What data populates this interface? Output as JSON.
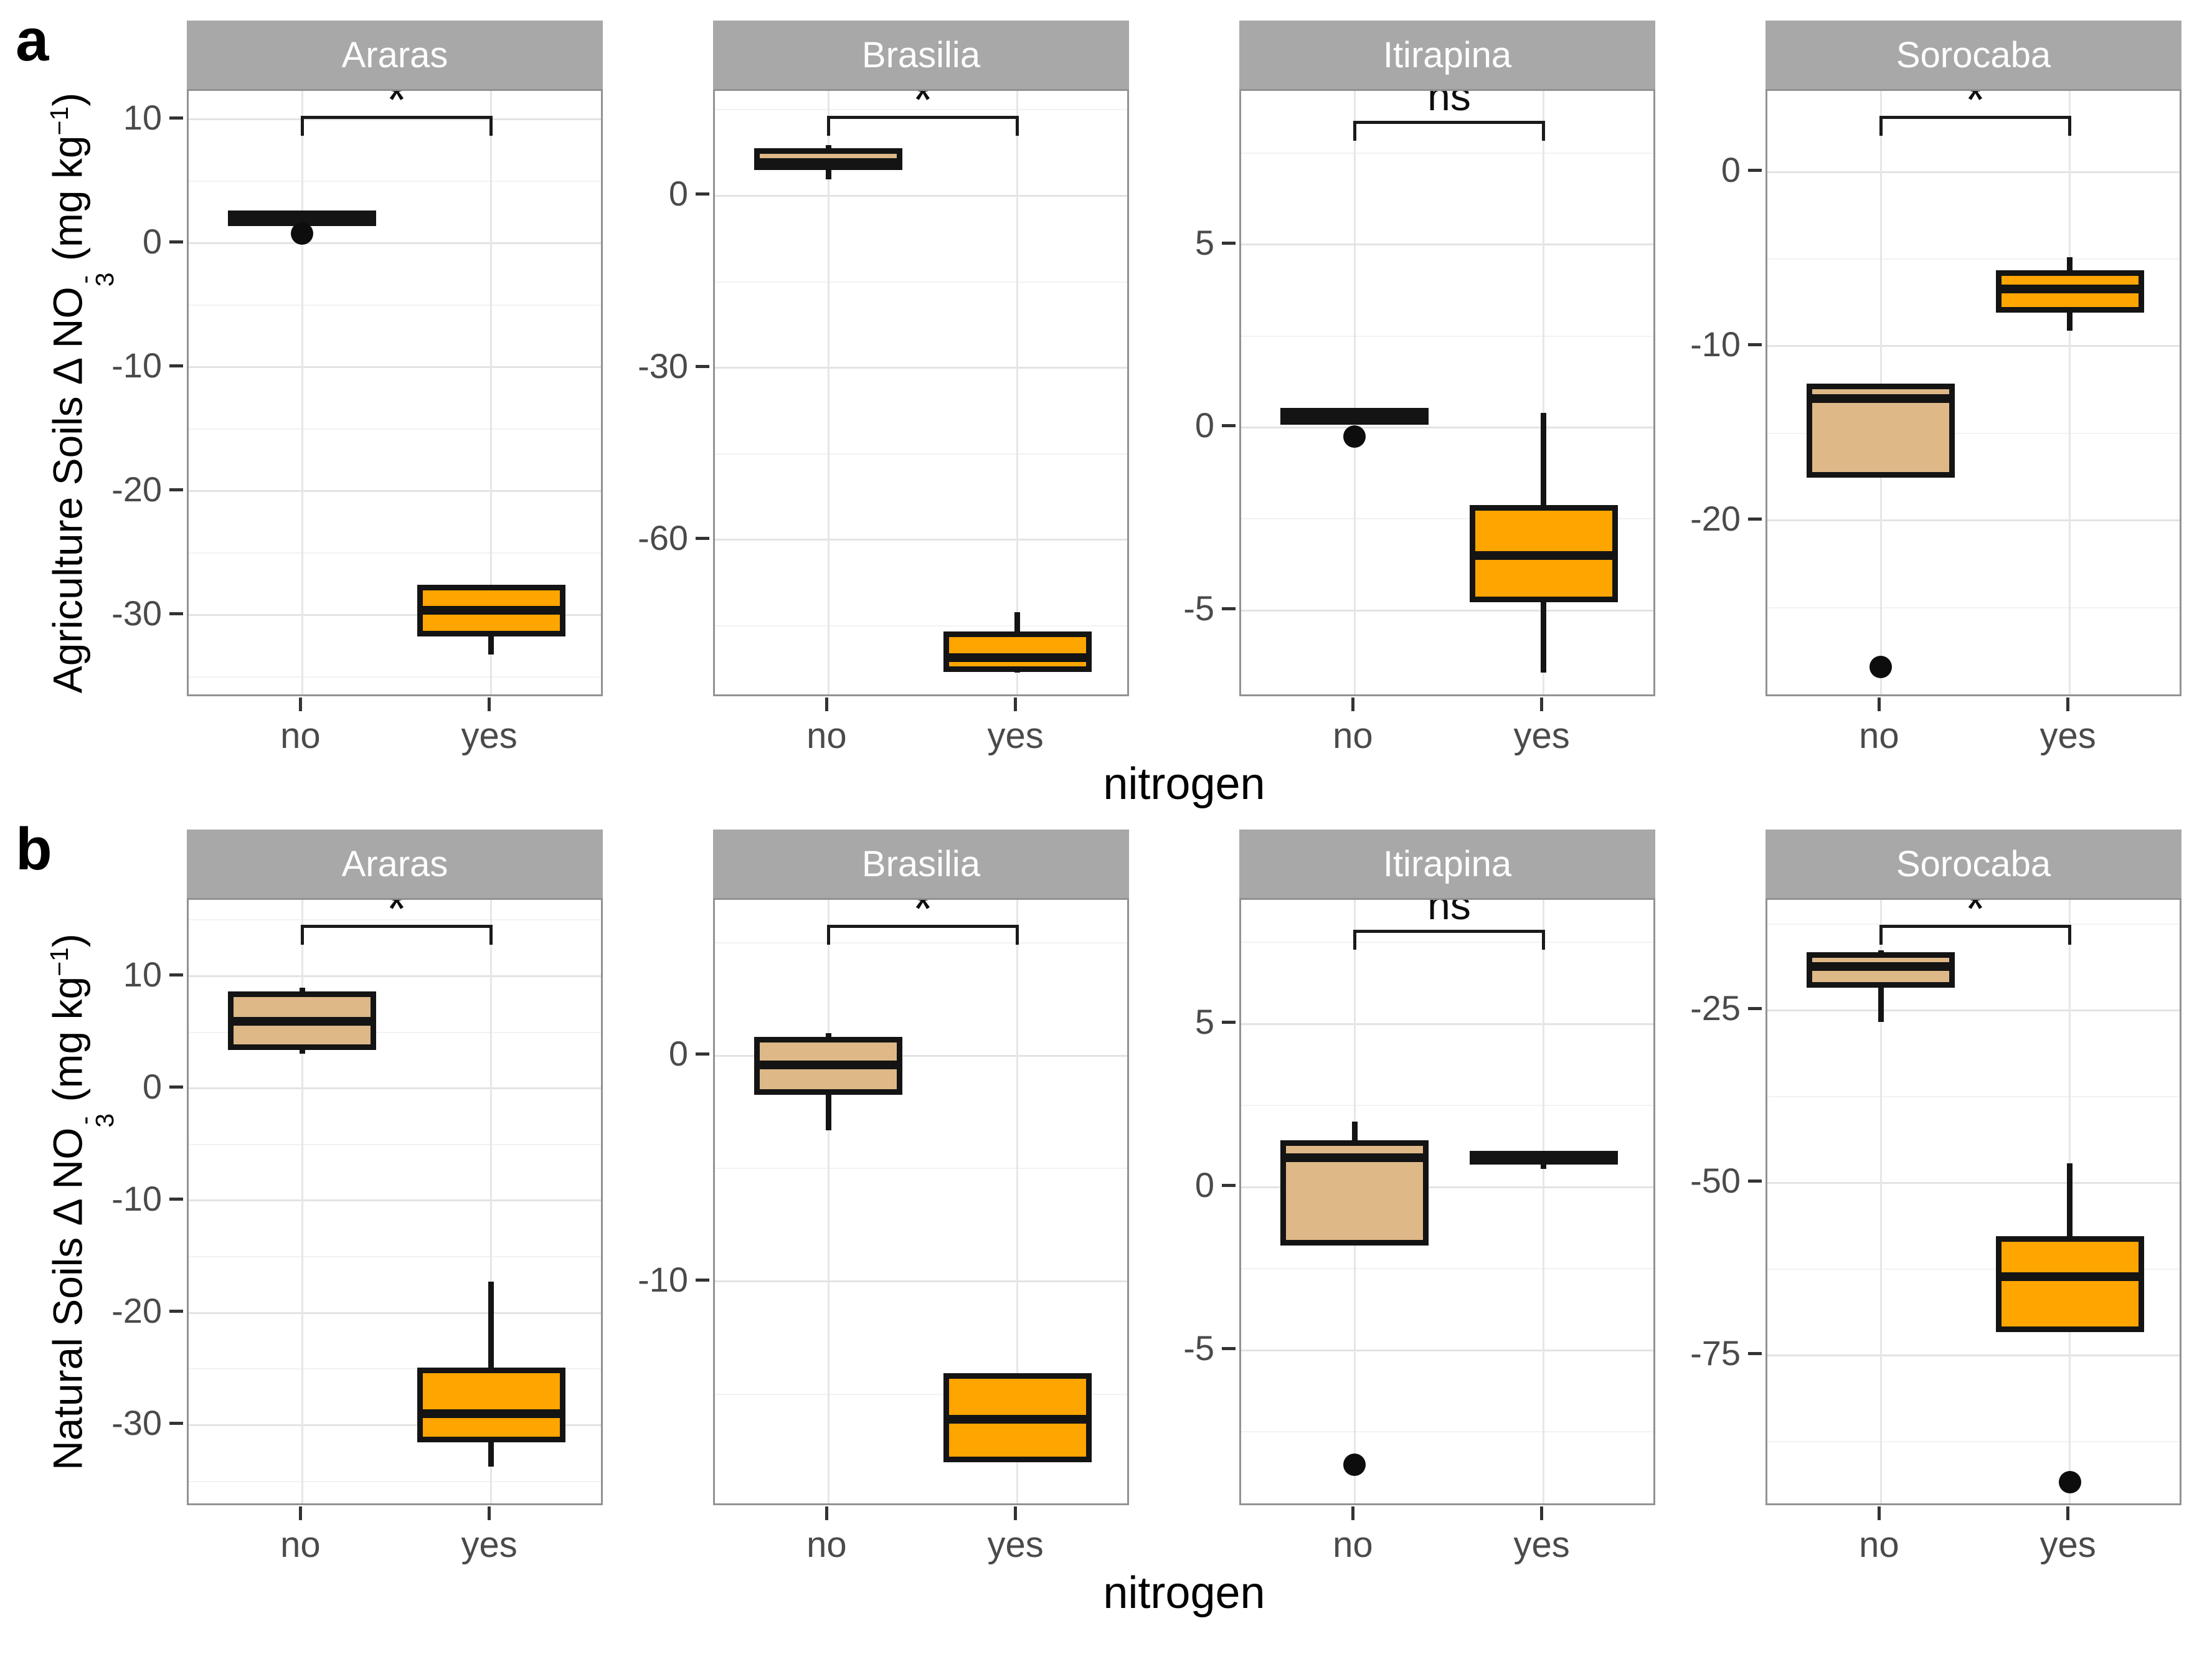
{
  "chart_data": {
    "type": "boxplot",
    "x_axis_title": "nitrogen",
    "x_categories": [
      "no",
      "yes"
    ],
    "legend_position": "none",
    "grid": "on",
    "colors": {
      "fill_no": "#DEB887",
      "fill_yes": "#FFA500",
      "box_stroke": "#141414",
      "strip_bg": "#A8A8A8",
      "strip_text": "#FFFFFF",
      "panel_border": "#929292",
      "grid_major": "#E3E3E3",
      "grid_minor": "#F2F2F2",
      "tick_text": "#4A4A4A"
    },
    "rows": [
      {
        "letter": "a",
        "y_axis_title": "Agriculture Soils Δ NO3⁻ (mg kg⁻¹)",
        "y_title_parts": {
          "main": "Agriculture Soils Δ NO",
          "no3_sup": "-",
          "no3_sub": "3",
          "tail": " (mg kg",
          "exp": "−1",
          "close": ")"
        },
        "facets": [
          {
            "name": "Araras",
            "ylim": [
              -36.7,
              12.3
            ],
            "ticks": [
              10,
              0,
              -10,
              -20,
              -30
            ],
            "minor_ticks": [
              5,
              -5,
              -15,
              -25,
              -35
            ],
            "significance": "*",
            "groups": [
              {
                "label": "no",
                "fill": "#DEB887",
                "q1": 1.6,
                "median": 2.0,
                "q3": 2.4,
                "outliers": [
                  0.8
                ]
              },
              {
                "label": "yes",
                "fill": "#FFA500",
                "q1": -31.5,
                "median": -29.6,
                "q3": -27.8,
                "whisker_low": -33.2
              }
            ]
          },
          {
            "name": "Brasilia",
            "ylim": [
              -87.6,
              18.3
            ],
            "ticks": [
              0,
              -30,
              -60
            ],
            "minor_ticks": [
              15,
              -15,
              -45,
              -75
            ],
            "significance": "*",
            "groups": [
              {
                "label": "no",
                "fill": "#DEB887",
                "q1": 5.0,
                "median": 5.8,
                "q3": 7.8,
                "whisker_low": 2.9,
                "whisker_high": 8.9
              },
              {
                "label": "yes",
                "fill": "#FFA500",
                "q1": -82.5,
                "median": -80.5,
                "q3": -76.5,
                "whisker_low": -83.2,
                "whisker_high": -72.6
              }
            ]
          },
          {
            "name": "Itirapina",
            "ylim": [
              -7.4,
              9.2
            ],
            "ticks": [
              5,
              0,
              -5
            ],
            "minor_ticks": [
              7.5,
              2.5,
              -2.5,
              -7.5
            ],
            "significance": "ns",
            "groups": [
              {
                "label": "no",
                "fill": "#DEB887",
                "q1": 0.15,
                "median": 0.3,
                "q3": 0.45,
                "outliers": [
                  -0.25
                ]
              },
              {
                "label": "yes",
                "fill": "#FFA500",
                "q1": -4.7,
                "median": -3.5,
                "q3": -2.2,
                "whisker_low": -6.7,
                "whisker_high": 0.4
              }
            ]
          },
          {
            "name": "Sorocaba",
            "ylim": [
              -30.2,
              4.65
            ],
            "ticks": [
              0,
              -10,
              -20
            ],
            "minor_ticks": [
              -5,
              -15,
              -25
            ],
            "significance": "*",
            "groups": [
              {
                "label": "no",
                "fill": "#DEB887",
                "q1": -17.4,
                "median": -13.0,
                "q3": -12.3,
                "outliers": [
                  -28.4
                ]
              },
              {
                "label": "yes",
                "fill": "#FFA500",
                "q1": -7.9,
                "median": -6.7,
                "q3": -5.8,
                "whisker_low": -9.1,
                "whisker_high": -4.9
              }
            ]
          }
        ]
      },
      {
        "letter": "b",
        "y_axis_title": "Natural Soils Δ NO3⁻ (mg kg⁻¹)",
        "y_title_parts": {
          "main": "Natural Soils Δ NO",
          "no3_sup": "-",
          "no3_sub": "3",
          "tail": " (mg kg",
          "exp": "−1",
          "close": ")"
        },
        "facets": [
          {
            "name": "Araras",
            "ylim": [
              -37.3,
              16.8
            ],
            "ticks": [
              10,
              0,
              -10,
              -20,
              -30
            ],
            "minor_ticks": [
              15,
              5,
              -5,
              -15,
              -25,
              -35
            ],
            "significance": "*",
            "groups": [
              {
                "label": "no",
                "fill": "#DEB887",
                "q1": 3.7,
                "median": 6.0,
                "q3": 8.4,
                "whisker_low": 3.1,
                "whisker_high": 9.0
              },
              {
                "label": "yes",
                "fill": "#FFA500",
                "q1": -31.3,
                "median": -29.0,
                "q3": -25.1,
                "whisker_low": -33.7,
                "whisker_high": -17.2
              }
            ]
          },
          {
            "name": "Brasilia",
            "ylim": [
              -20.0,
              6.9
            ],
            "ticks": [
              0,
              -10
            ],
            "minor_ticks": [
              5,
              -5,
              -15
            ],
            "significance": "*",
            "groups": [
              {
                "label": "no",
                "fill": "#DEB887",
                "q1": -1.6,
                "median": -0.4,
                "q3": 0.7,
                "whisker_low": -3.3,
                "whisker_high": 1.0
              },
              {
                "label": "yes",
                "fill": "#FFA500",
                "q1": -17.9,
                "median": -16.1,
                "q3": -14.2
              }
            ]
          },
          {
            "name": "Itirapina",
            "ylim": [
              -9.8,
              8.8
            ],
            "ticks": [
              5,
              0,
              -5
            ],
            "minor_ticks": [
              7.5,
              2.5,
              -2.5,
              -7.5
            ],
            "significance": "ns",
            "groups": [
              {
                "label": "no",
                "fill": "#DEB887",
                "q1": -1.7,
                "median": 0.9,
                "q3": 1.35,
                "whisker_high": 2.0,
                "outliers": [
                  -8.5
                ]
              },
              {
                "label": "yes",
                "fill": "#FFA500",
                "q1": 0.78,
                "median": 0.9,
                "q3": 1.02,
                "whisker_low": 0.55
              }
            ]
          },
          {
            "name": "Sorocaba",
            "ylim": [
              -97.0,
              -9.0
            ],
            "ticks": [
              -25,
              -50,
              -75
            ],
            "minor_ticks": [
              -12.5,
              -37.5,
              -62.5,
              -87.5
            ],
            "significance": "*",
            "groups": [
              {
                "label": "no",
                "fill": "#DEB887",
                "q1": -21.3,
                "median": -18.7,
                "q3": -17.0,
                "whisker_low": -26.7,
                "whisker_high": -16.3
              },
              {
                "label": "yes",
                "fill": "#FFA500",
                "q1": -71.2,
                "median": -63.6,
                "q3": -58.1,
                "whisker_high": -47.2,
                "outliers": [
                  -93.4
                ]
              }
            ]
          }
        ]
      }
    ]
  }
}
